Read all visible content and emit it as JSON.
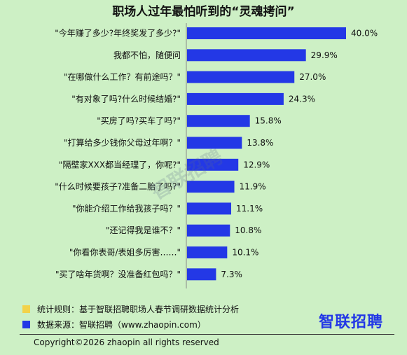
{
  "title": "职场人过年最怕听到的“灵魂拷问”",
  "chart_data": {
    "type": "bar",
    "orientation": "horizontal",
    "categories": [
      "\"今年赚了多少?年终奖发了多少?\"",
      "我都不怕，随便问",
      "\"在哪做什么工作？有前途吗？\"",
      "\"有对象了吗?什么时候结婚?\"",
      "\"买房了吗?买车了吗?\"",
      "\"打算给多少钱你父母过年啊？\"",
      "\"隔壁家XXX都当经理了，你呢?\"",
      "\"什么时候要孩子?准备二胎了吗?\"",
      "\"你能介绍工作给我孩子吗？\"",
      "\"还记得我是谁不？\"",
      "\"你看你表哥/表姐多厉害……\"",
      "\"买了啥年货啊？没准备红包吗？\""
    ],
    "values": [
      40.0,
      29.9,
      27.0,
      24.3,
      15.8,
      13.8,
      12.9,
      11.9,
      11.1,
      10.8,
      10.1,
      7.3
    ],
    "value_labels": [
      "40.0%",
      "29.9%",
      "27.0%",
      "24.3%",
      "15.8%",
      "13.8%",
      "12.9%",
      "11.9%",
      "11.1%",
      "10.8%",
      "10.1%",
      "7.3%"
    ],
    "unit": "%",
    "bar_color": "#2338e6",
    "xlim": [
      0,
      40
    ]
  },
  "footer": {
    "rule_text": "统计规则：基于智联招聘职场人春节调研数据统计分析",
    "rule_color": "#f2d24a",
    "source_text": "数据来源：智联招聘（www.zhaopin.com）",
    "source_color": "#2338e6",
    "brand": "智联招聘",
    "copyright": "Copyright©2026 zhaopin all rights reserved"
  },
  "watermark": "智联招聘"
}
